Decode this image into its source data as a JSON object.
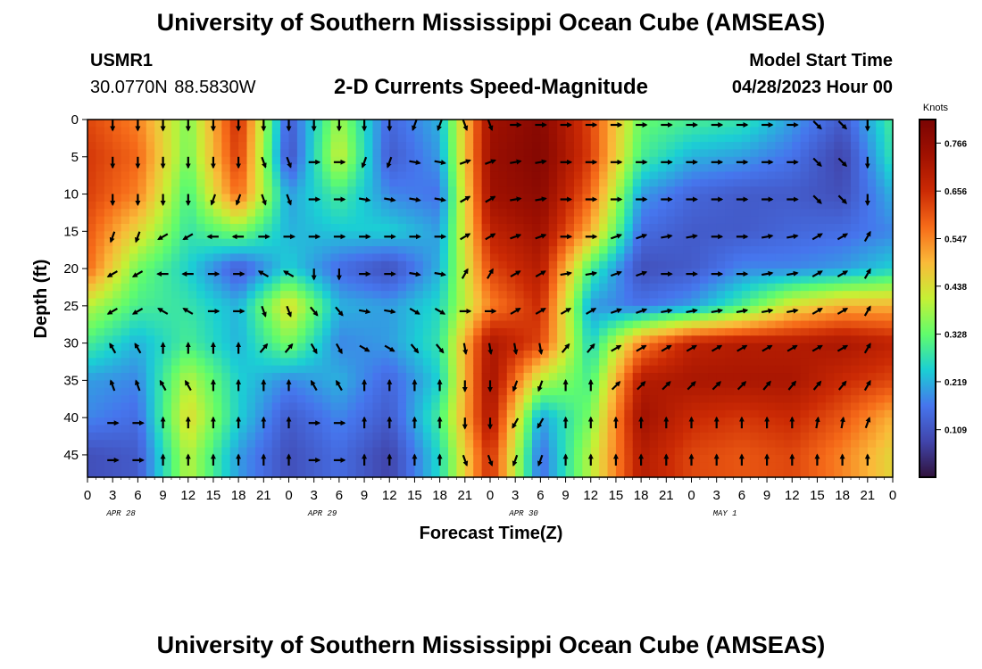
{
  "header": {
    "title_top": "University of Southern Mississippi Ocean Cube (AMSEAS)",
    "title_bottom": "University of Southern Mississippi Ocean Cube (AMSEAS)",
    "station_id": "USMR1",
    "station_coords": "30.0770N  88.5830W",
    "subtitle": "2-D Currents Speed-Magnitude",
    "model_start_label": "Model Start Time",
    "model_start_value": "04/28/2023 Hour 00"
  },
  "chart_data": {
    "type": "heatmap",
    "title": "2-D Currents Speed-Magnitude",
    "xlabel": "Forecast Time(Z)",
    "ylabel": "Depth (ft)",
    "x_tick_labels": [
      "0",
      "3",
      "6",
      "9",
      "12",
      "15",
      "18",
      "21",
      "0",
      "3",
      "6",
      "9",
      "12",
      "15",
      "18",
      "21",
      "0",
      "3",
      "6",
      "9",
      "12",
      "15",
      "18",
      "21",
      "0",
      "3",
      "6",
      "9",
      "12",
      "15",
      "18",
      "21",
      "0"
    ],
    "date_labels": [
      "APR 28",
      "APR 29",
      "APR 30",
      "MAY 1"
    ],
    "x_hours": [
      0,
      96
    ],
    "y_ticks": [
      0,
      5,
      10,
      15,
      20,
      25,
      30,
      35,
      40,
      45
    ],
    "ylim": [
      0,
      48
    ],
    "y_inverted": true,
    "colorbar": {
      "unit": "Knots",
      "tick_values": [
        0.109,
        0.219,
        0.328,
        0.438,
        0.547,
        0.656,
        0.766
      ],
      "range": [
        0.0,
        0.82
      ]
    },
    "depth_levels": [
      0,
      5,
      10,
      15,
      20,
      25,
      30,
      35,
      40,
      45
    ],
    "speed_samples_times": [
      0,
      6,
      12,
      18,
      24,
      30,
      36,
      42,
      48,
      54,
      60,
      66,
      72,
      78,
      84,
      90,
      96
    ],
    "speed_knots": [
      [
        0.62,
        0.55,
        0.35,
        0.66,
        0.12,
        0.38,
        0.14,
        0.22,
        0.74,
        0.79,
        0.62,
        0.33,
        0.3,
        0.28,
        0.2,
        0.12,
        0.3
      ],
      [
        0.64,
        0.58,
        0.34,
        0.64,
        0.1,
        0.42,
        0.12,
        0.2,
        0.75,
        0.8,
        0.63,
        0.3,
        0.22,
        0.2,
        0.16,
        0.08,
        0.28
      ],
      [
        0.63,
        0.55,
        0.3,
        0.58,
        0.2,
        0.3,
        0.18,
        0.16,
        0.74,
        0.78,
        0.58,
        0.2,
        0.14,
        0.12,
        0.12,
        0.1,
        0.22
      ],
      [
        0.6,
        0.45,
        0.28,
        0.35,
        0.22,
        0.24,
        0.25,
        0.2,
        0.68,
        0.74,
        0.5,
        0.15,
        0.12,
        0.12,
        0.14,
        0.15,
        0.18
      ],
      [
        0.58,
        0.34,
        0.25,
        0.12,
        0.25,
        0.15,
        0.1,
        0.22,
        0.62,
        0.7,
        0.3,
        0.1,
        0.12,
        0.18,
        0.18,
        0.2,
        0.25
      ],
      [
        0.4,
        0.3,
        0.28,
        0.22,
        0.45,
        0.22,
        0.2,
        0.26,
        0.55,
        0.66,
        0.2,
        0.16,
        0.2,
        0.3,
        0.44,
        0.5,
        0.5
      ],
      [
        0.3,
        0.22,
        0.3,
        0.22,
        0.35,
        0.18,
        0.2,
        0.28,
        0.72,
        0.62,
        0.25,
        0.55,
        0.68,
        0.7,
        0.7,
        0.72,
        0.68
      ],
      [
        0.2,
        0.18,
        0.4,
        0.25,
        0.18,
        0.22,
        0.14,
        0.25,
        0.74,
        0.4,
        0.3,
        0.7,
        0.72,
        0.72,
        0.72,
        0.66,
        0.62
      ],
      [
        0.18,
        0.15,
        0.45,
        0.25,
        0.12,
        0.18,
        0.12,
        0.3,
        0.72,
        0.2,
        0.35,
        0.74,
        0.66,
        0.64,
        0.66,
        0.6,
        0.5
      ],
      [
        0.1,
        0.12,
        0.4,
        0.2,
        0.1,
        0.15,
        0.08,
        0.26,
        0.66,
        0.15,
        0.4,
        0.7,
        0.62,
        0.6,
        0.62,
        0.55,
        0.45
      ]
    ],
    "current_direction_deg": [
      [
        180,
        180,
        180,
        180,
        180,
        180,
        180,
        200,
        160,
        90,
        90,
        90,
        90,
        90,
        90,
        135,
        180
      ],
      [
        180,
        180,
        180,
        180,
        160,
        90,
        200,
        100,
        70,
        80,
        90,
        90,
        90,
        90,
        90,
        135,
        180
      ],
      [
        180,
        180,
        180,
        200,
        160,
        90,
        100,
        100,
        60,
        80,
        90,
        90,
        90,
        90,
        90,
        135,
        180
      ],
      [
        180,
        200,
        240,
        270,
        90,
        90,
        90,
        90,
        60,
        70,
        90,
        70,
        80,
        90,
        80,
        60,
        30
      ],
      [
        180,
        240,
        270,
        90,
        300,
        180,
        90,
        100,
        30,
        60,
        80,
        70,
        90,
        90,
        80,
        60,
        30
      ],
      [
        220,
        240,
        300,
        90,
        160,
        140,
        100,
        120,
        90,
        60,
        60,
        70,
        80,
        80,
        80,
        60,
        30
      ],
      [
        210,
        330,
        0,
        0,
        40,
        150,
        120,
        140,
        170,
        170,
        40,
        60,
        60,
        60,
        60,
        60,
        30
      ],
      [
        200,
        340,
        330,
        0,
        0,
        330,
        0,
        0,
        180,
        200,
        0,
        45,
        45,
        45,
        40,
        40,
        30
      ],
      [
        180,
        90,
        0,
        0,
        0,
        90,
        0,
        0,
        180,
        210,
        0,
        0,
        0,
        0,
        0,
        10,
        20
      ],
      [
        160,
        90,
        0,
        0,
        0,
        90,
        0,
        0,
        160,
        200,
        0,
        0,
        0,
        0,
        0,
        0,
        0
      ]
    ]
  }
}
